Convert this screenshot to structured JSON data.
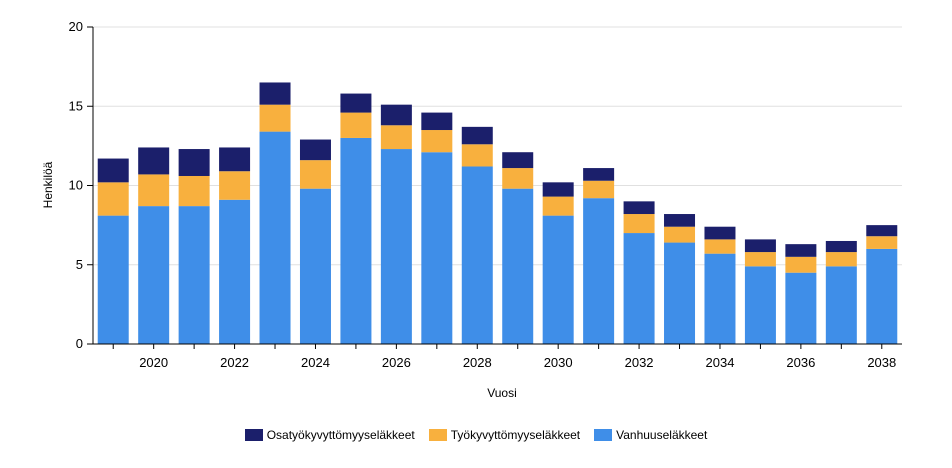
{
  "chart_data": {
    "type": "bar",
    "stacked": true,
    "title": "",
    "xlabel": "Vuosi",
    "ylabel": "Henkilöä",
    "ylim": [
      0,
      20
    ],
    "yticks": [
      "0",
      "5",
      "10",
      "15",
      "20"
    ],
    "grid": true,
    "categories": [
      "2019",
      "2020",
      "2021",
      "2022",
      "2023",
      "2024",
      "2025",
      "2026",
      "2027",
      "2028",
      "2029",
      "2030",
      "2031",
      "2032",
      "2033",
      "2034",
      "2035",
      "2036",
      "2037",
      "2038"
    ],
    "xtick_labels": [
      "2020",
      "2022",
      "2024",
      "2026",
      "2028",
      "2030",
      "2032",
      "2034",
      "2036",
      "2038"
    ],
    "series": [
      {
        "name": "Vanhuuseläkkeet",
        "color": "#3f8ee8",
        "values": [
          8.1,
          8.7,
          8.7,
          9.1,
          13.4,
          9.8,
          13.0,
          12.3,
          12.1,
          11.2,
          9.8,
          8.1,
          9.2,
          7.0,
          6.4,
          5.7,
          4.9,
          4.5,
          4.9,
          6.0
        ]
      },
      {
        "name": "Työkyvyttömyyseläkkeet",
        "color": "#f8b03e",
        "values": [
          2.1,
          2.0,
          1.9,
          1.8,
          1.7,
          1.8,
          1.6,
          1.5,
          1.4,
          1.4,
          1.3,
          1.2,
          1.1,
          1.2,
          1.0,
          0.9,
          0.9,
          1.0,
          0.9,
          0.8
        ]
      },
      {
        "name": "Osatyökyvyttömyyseläkkeet",
        "color": "#1b1f6b",
        "values": [
          1.5,
          1.7,
          1.7,
          1.5,
          1.4,
          1.3,
          1.2,
          1.3,
          1.1,
          1.1,
          1.0,
          0.9,
          0.8,
          0.8,
          0.8,
          0.8,
          0.8,
          0.8,
          0.7,
          0.7
        ]
      }
    ],
    "legend": {
      "position": "bottom",
      "order": [
        "Osatyökyvyttömyyseläkkeet",
        "Työkyvyttömyyseläkkeet",
        "Vanhuuseläkkeet"
      ]
    }
  }
}
